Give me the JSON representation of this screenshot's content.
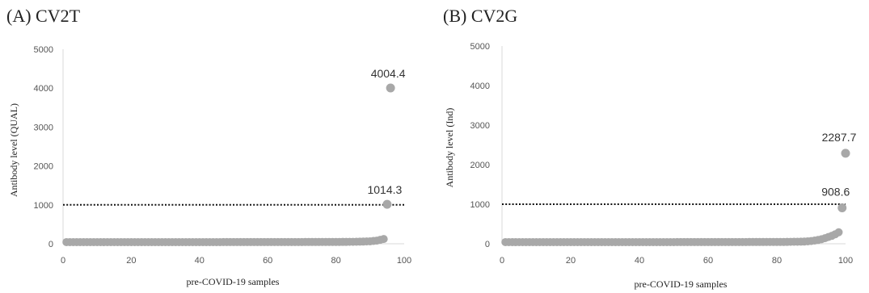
{
  "chart_data": [
    {
      "type": "scatter",
      "title": "(A) CV2T",
      "xlabel": "pre-COVID-19 samples",
      "ylabel": "Antibody level (QUAL)",
      "xlim": [
        0,
        100
      ],
      "ylim": [
        0,
        5000
      ],
      "x_ticks": [
        "0",
        "20",
        "40",
        "60",
        "80",
        "100"
      ],
      "y_ticks": [
        "0",
        "1000",
        "2000",
        "3000",
        "4000",
        "5000"
      ],
      "threshold": 1000,
      "n_samples": 96,
      "baseline_values": [
        1,
        1,
        1,
        1,
        1,
        1,
        1,
        1,
        1,
        1,
        1,
        1,
        1,
        1,
        1,
        1,
        1,
        1,
        1,
        1,
        1,
        1,
        1,
        1,
        1,
        1,
        1,
        1,
        1,
        1,
        1,
        1,
        1,
        1,
        1,
        1,
        1,
        1,
        1,
        1,
        1,
        1,
        1,
        1,
        1,
        1,
        2,
        2,
        2,
        2,
        2,
        2,
        2,
        2,
        2,
        2,
        2,
        2,
        2,
        2,
        3,
        3,
        3,
        3,
        3,
        3,
        3,
        3,
        3,
        3,
        4,
        4,
        4,
        4,
        4,
        5,
        5,
        5,
        5,
        6,
        6,
        7,
        7,
        8,
        9,
        10,
        12,
        15,
        18,
        22,
        30,
        40,
        60,
        80
      ],
      "highlighted_points": [
        {
          "x": 95,
          "y": 1014.3,
          "label": "1014.3"
        },
        {
          "x": 96,
          "y": 4004.4,
          "label": "4004.4"
        }
      ],
      "grid": false,
      "point_color": "#a8a8a8"
    },
    {
      "type": "scatter",
      "title": "(B) CV2G",
      "xlabel": "pre-COVID-19 samples",
      "ylabel": "Antibody level (Ind)",
      "xlim": [
        0,
        100
      ],
      "ylim": [
        0,
        5000
      ],
      "x_ticks": [
        "0",
        "20",
        "40",
        "60",
        "80",
        "100"
      ],
      "y_ticks": [
        "0",
        "1000",
        "2000",
        "3000",
        "4000",
        "5000"
      ],
      "threshold": 1000,
      "n_samples": 100,
      "baseline_values": [
        1,
        1,
        1,
        1,
        1,
        1,
        1,
        1,
        1,
        1,
        1,
        1,
        1,
        1,
        1,
        1,
        1,
        1,
        1,
        1,
        1,
        1,
        1,
        1,
        1,
        1,
        1,
        1,
        1,
        1,
        1,
        1,
        1,
        1,
        1,
        1,
        1,
        1,
        1,
        1,
        1,
        1,
        1,
        1,
        1,
        1,
        1,
        1,
        1,
        1,
        2,
        2,
        2,
        2,
        2,
        2,
        2,
        2,
        2,
        2,
        2,
        2,
        3,
        3,
        3,
        3,
        3,
        3,
        3,
        3,
        3,
        4,
        4,
        4,
        4,
        4,
        5,
        5,
        5,
        5,
        6,
        6,
        7,
        8,
        9,
        10,
        12,
        15,
        20,
        28,
        40,
        55,
        75,
        100,
        130,
        160,
        200,
        250
      ],
      "highlighted_points": [
        {
          "x": 99,
          "y": 908.6,
          "label": "908.6"
        },
        {
          "x": 100,
          "y": 2287.7,
          "label": "2287.7"
        }
      ],
      "grid": false,
      "point_color": "#a8a8a8"
    }
  ]
}
